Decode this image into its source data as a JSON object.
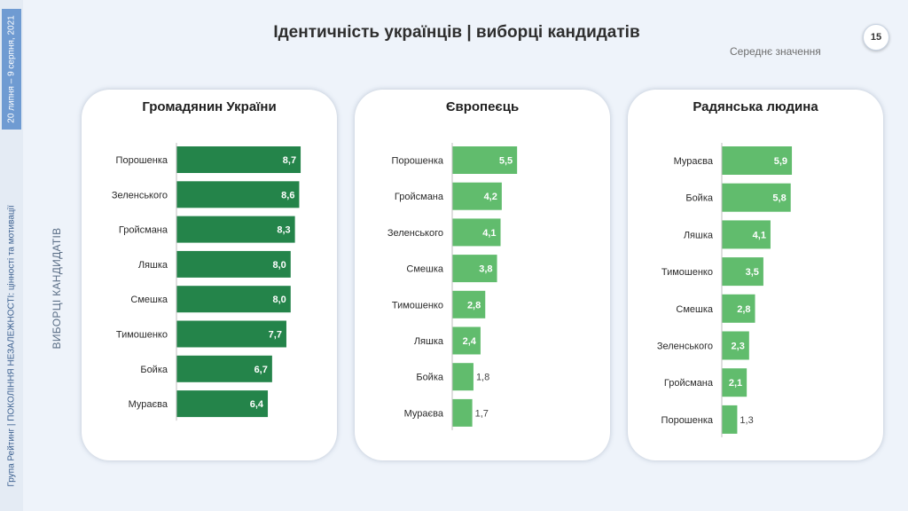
{
  "header": {
    "title": "Ідентичність українців | виборці кандидатів",
    "page_number": "15",
    "subtitle": "Середнє значення"
  },
  "sidebar": {
    "date": "20 липня – 9 серпня, 2021",
    "org": "Група Рейтинг | ПОКОЛІННЯ НЕЗАЛЕЖНОСТІ: цінності та мотивації",
    "section_label": "ВИБОРЦІ КАНДИДАТІВ"
  },
  "colors": {
    "dark_green": "#24844a",
    "light_green": "#61bc6d",
    "date_box": "#6f9bd2"
  },
  "chart_data": [
    {
      "type": "bar",
      "orientation": "horizontal",
      "title": "Громадянин України",
      "color": "#24844a",
      "categories": [
        "Порошенка",
        "Зеленського",
        "Гройсмана",
        "Ляшка",
        "Смешка",
        "Тимошенко",
        "Бойка",
        "Мураєва"
      ],
      "values": [
        8.7,
        8.6,
        8.3,
        8.0,
        8.0,
        7.7,
        6.7,
        6.4
      ],
      "labels": [
        "8,7",
        "8,6",
        "8,3",
        "8,0",
        "8,0",
        "7,7",
        "6,7",
        "6,4"
      ],
      "xlim": [
        0,
        10
      ],
      "grid": false
    },
    {
      "type": "bar",
      "orientation": "horizontal",
      "title": "Європеєць",
      "color": "#61bc6d",
      "categories": [
        "Порошенка",
        "Гройсмана",
        "Зеленського",
        "Смешка",
        "Тимошенко",
        "Ляшка",
        "Бойка",
        "Мураєва"
      ],
      "values": [
        5.5,
        4.2,
        4.1,
        3.8,
        2.8,
        2.4,
        1.8,
        1.7
      ],
      "labels": [
        "5,5",
        "4,2",
        "4,1",
        "3,8",
        "2,8",
        "2,4",
        "1,8",
        "1,7"
      ],
      "xlim": [
        0,
        10
      ],
      "grid": false
    },
    {
      "type": "bar",
      "orientation": "horizontal",
      "title": "Радянська людина",
      "color": "#61bc6d",
      "categories": [
        "Мураєва",
        "Бойка",
        "Ляшка",
        "Тимошенко",
        "Смешка",
        "Зеленського",
        "Гройсмана",
        "Порошенка"
      ],
      "values": [
        5.9,
        5.8,
        4.1,
        3.5,
        2.8,
        2.3,
        2.1,
        1.3
      ],
      "labels": [
        "5,9",
        "5,8",
        "4,1",
        "3,5",
        "2,8",
        "2,3",
        "2,1",
        "1,3"
      ],
      "xlim": [
        0,
        10
      ],
      "grid": false
    }
  ]
}
